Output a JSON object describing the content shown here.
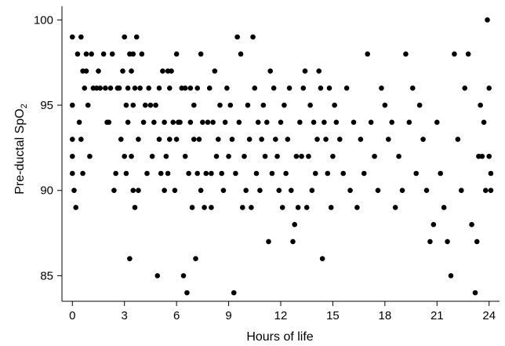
{
  "chart_data": {
    "type": "scatter",
    "title": "",
    "xlabel": "Hours of life",
    "ylabel_main": "Pre-ductal SpO",
    "ylabel_sub": "2",
    "xlim": [
      -0.6,
      24.6
    ],
    "ylim": [
      83.5,
      100.8
    ],
    "xticks": [
      0,
      3,
      6,
      9,
      12,
      15,
      18,
      21,
      24
    ],
    "yticks": [
      85,
      90,
      95,
      100
    ],
    "grid": false,
    "legend": "none",
    "marker_color": "#000000",
    "series": [
      {
        "points": [
          [
            0,
            99
          ],
          [
            0,
            95
          ],
          [
            0,
            93
          ],
          [
            0,
            92
          ],
          [
            0,
            91
          ],
          [
            0.1,
            90
          ],
          [
            0.2,
            89
          ],
          [
            0.3,
            98
          ],
          [
            0.4,
            94
          ],
          [
            0.5,
            99
          ],
          [
            0.5,
            93
          ],
          [
            0.6,
            91
          ],
          [
            0.6,
            97
          ],
          [
            0.7,
            96
          ],
          [
            0.8,
            97
          ],
          [
            0.8,
            98
          ],
          [
            0.9,
            95
          ],
          [
            1.0,
            92
          ],
          [
            1.1,
            98
          ],
          [
            1.2,
            96
          ],
          [
            1.4,
            96
          ],
          [
            1.5,
            97
          ],
          [
            1.6,
            96
          ],
          [
            1.8,
            98
          ],
          [
            1.9,
            96
          ],
          [
            2.0,
            94
          ],
          [
            2.1,
            94
          ],
          [
            2.2,
            96
          ],
          [
            2.3,
            98
          ],
          [
            2.4,
            90
          ],
          [
            2.5,
            91
          ],
          [
            2.6,
            96
          ],
          [
            2.7,
            96
          ],
          [
            2.8,
            93
          ],
          [
            2.9,
            97
          ],
          [
            3.0,
            99
          ],
          [
            3.0,
            92
          ],
          [
            3.1,
            95
          ],
          [
            3.1,
            91
          ],
          [
            3.2,
            96
          ],
          [
            3.2,
            94
          ],
          [
            3.3,
            98
          ],
          [
            3.3,
            86
          ],
          [
            3.4,
            97
          ],
          [
            3.4,
            92
          ],
          [
            3.5,
            98
          ],
          [
            3.5,
            95
          ],
          [
            3.5,
            90
          ],
          [
            3.6,
            96
          ],
          [
            3.6,
            89
          ],
          [
            3.7,
            99
          ],
          [
            3.8,
            93
          ],
          [
            3.8,
            90
          ],
          [
            3.9,
            96
          ],
          [
            4.0,
            98
          ],
          [
            4.1,
            94
          ],
          [
            4.2,
            95
          ],
          [
            4.3,
            91
          ],
          [
            4.4,
            96
          ],
          [
            4.5,
            95
          ],
          [
            4.6,
            92
          ],
          [
            4.7,
            94
          ],
          [
            4.8,
            95
          ],
          [
            4.9,
            85
          ],
          [
            5.0,
            93
          ],
          [
            5.0,
            96
          ],
          [
            5.1,
            91
          ],
          [
            5.2,
            97
          ],
          [
            5.3,
            90
          ],
          [
            5.3,
            94
          ],
          [
            5.4,
            92
          ],
          [
            5.5,
            97
          ],
          [
            5.5,
            91
          ],
          [
            5.6,
            96
          ],
          [
            5.6,
            93
          ],
          [
            5.7,
            97
          ],
          [
            5.8,
            94
          ],
          [
            5.9,
            90
          ],
          [
            6.0,
            98
          ],
          [
            6.0,
            93
          ],
          [
            6.1,
            94
          ],
          [
            6.2,
            94
          ],
          [
            6.3,
            96
          ],
          [
            6.4,
            85
          ],
          [
            6.5,
            92
          ],
          [
            6.5,
            96
          ],
          [
            6.6,
            84
          ],
          [
            6.7,
            91
          ],
          [
            6.8,
            94
          ],
          [
            6.8,
            96
          ],
          [
            6.9,
            89
          ],
          [
            7.0,
            93
          ],
          [
            7.0,
            95
          ],
          [
            7.1,
            86
          ],
          [
            7.2,
            96
          ],
          [
            7.2,
            91
          ],
          [
            7.3,
            93
          ],
          [
            7.4,
            98
          ],
          [
            7.4,
            90
          ],
          [
            7.5,
            94
          ],
          [
            7.6,
            89
          ],
          [
            7.7,
            91
          ],
          [
            7.8,
            94
          ],
          [
            7.9,
            96
          ],
          [
            8.0,
            91
          ],
          [
            8.0,
            89
          ],
          [
            8.1,
            94
          ],
          [
            8.2,
            97
          ],
          [
            8.3,
            92
          ],
          [
            8.4,
            93
          ],
          [
            8.5,
            95
          ],
          [
            8.6,
            91
          ],
          [
            8.7,
            90
          ],
          [
            8.8,
            94
          ],
          [
            8.9,
            96
          ],
          [
            9.0,
            92
          ],
          [
            9.1,
            95
          ],
          [
            9.2,
            93
          ],
          [
            9.3,
            84
          ],
          [
            9.4,
            91
          ],
          [
            9.5,
            99
          ],
          [
            9.6,
            94
          ],
          [
            9.7,
            98
          ],
          [
            9.8,
            89
          ],
          [
            9.9,
            92
          ],
          [
            10.0,
            90
          ],
          [
            10.1,
            95
          ],
          [
            10.2,
            93
          ],
          [
            10.3,
            89
          ],
          [
            10.4,
            99
          ],
          [
            10.5,
            96
          ],
          [
            10.6,
            91
          ],
          [
            10.7,
            94
          ],
          [
            10.8,
            90
          ],
          [
            10.9,
            93
          ],
          [
            11.0,
            95
          ],
          [
            11.1,
            92
          ],
          [
            11.2,
            94
          ],
          [
            11.3,
            87
          ],
          [
            11.4,
            97
          ],
          [
            11.5,
            91
          ],
          [
            11.6,
            96
          ],
          [
            11.7,
            93
          ],
          [
            11.8,
            92
          ],
          [
            11.9,
            90
          ],
          [
            12.0,
            94
          ],
          [
            12.1,
            89
          ],
          [
            12.2,
            95
          ],
          [
            12.3,
            91
          ],
          [
            12.4,
            93
          ],
          [
            12.5,
            96
          ],
          [
            12.6,
            90
          ],
          [
            12.7,
            87
          ],
          [
            12.8,
            88
          ],
          [
            12.9,
            92
          ],
          [
            13.0,
            89
          ],
          [
            13.1,
            94
          ],
          [
            13.2,
            92
          ],
          [
            13.3,
            96
          ],
          [
            13.4,
            97
          ],
          [
            13.5,
            89
          ],
          [
            13.6,
            92
          ],
          [
            13.7,
            95
          ],
          [
            13.8,
            90
          ],
          [
            13.9,
            94
          ],
          [
            14.0,
            91
          ],
          [
            14.1,
            93
          ],
          [
            14.2,
            97
          ],
          [
            14.3,
            96
          ],
          [
            14.4,
            86
          ],
          [
            14.5,
            94
          ],
          [
            14.6,
            93
          ],
          [
            14.7,
            91
          ],
          [
            14.8,
            96
          ],
          [
            14.9,
            89
          ],
          [
            15.0,
            92
          ],
          [
            15.1,
            95
          ],
          [
            15.2,
            94
          ],
          [
            15.4,
            93
          ],
          [
            15.6,
            91
          ],
          [
            15.8,
            96
          ],
          [
            16.0,
            90
          ],
          [
            16.2,
            94
          ],
          [
            16.4,
            89
          ],
          [
            16.6,
            93
          ],
          [
            16.8,
            91
          ],
          [
            17.0,
            98
          ],
          [
            17.2,
            94
          ],
          [
            17.4,
            92
          ],
          [
            17.6,
            90
          ],
          [
            17.8,
            96
          ],
          [
            18.0,
            95
          ],
          [
            18.2,
            93
          ],
          [
            18.4,
            94
          ],
          [
            18.6,
            89
          ],
          [
            18.8,
            92
          ],
          [
            19.0,
            90
          ],
          [
            19.2,
            98
          ],
          [
            19.4,
            94
          ],
          [
            19.6,
            96
          ],
          [
            19.8,
            91
          ],
          [
            20.0,
            95
          ],
          [
            20.2,
            93
          ],
          [
            20.4,
            90
          ],
          [
            20.6,
            87
          ],
          [
            20.8,
            88
          ],
          [
            21.0,
            94
          ],
          [
            21.2,
            91
          ],
          [
            21.4,
            89
          ],
          [
            21.6,
            87
          ],
          [
            21.8,
            85
          ],
          [
            22.0,
            98
          ],
          [
            22.2,
            93
          ],
          [
            22.4,
            90
          ],
          [
            22.6,
            96
          ],
          [
            22.8,
            98
          ],
          [
            23.0,
            88
          ],
          [
            23.2,
            84
          ],
          [
            23.3,
            87
          ],
          [
            23.4,
            92
          ],
          [
            23.5,
            95
          ],
          [
            23.6,
            92
          ],
          [
            23.7,
            94
          ],
          [
            23.8,
            90
          ],
          [
            23.9,
            100
          ],
          [
            24.0,
            92
          ],
          [
            24.0,
            96
          ],
          [
            24.1,
            91
          ],
          [
            24.1,
            90
          ]
        ]
      }
    ]
  }
}
